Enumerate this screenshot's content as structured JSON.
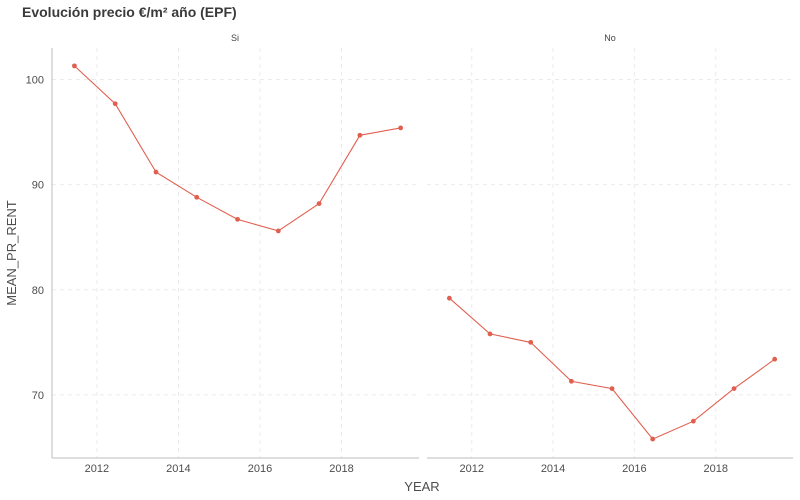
{
  "chart_data": {
    "type": "line",
    "title": "Evolución precio €/m² año (EPF)",
    "xlabel": "YEAR",
    "ylabel": "MEAN_PR_RENT",
    "x_ticks": [
      2012,
      2014,
      2016,
      2018
    ],
    "y_ticks": [
      70,
      80,
      90,
      100
    ],
    "xlim": [
      2010.9,
      2019.9
    ],
    "ylim": [
      64,
      103
    ],
    "grid": true,
    "color": "#e15f4f",
    "panels": [
      {
        "label": "Si",
        "x": [
          2011.45,
          2012.45,
          2013.45,
          2014.45,
          2015.45,
          2016.45,
          2017.45,
          2018.45,
          2019.45
        ],
        "y": [
          101.3,
          97.7,
          91.2,
          88.8,
          86.7,
          85.6,
          88.2,
          94.7,
          95.4
        ]
      },
      {
        "label": "No",
        "x": [
          2011.45,
          2012.45,
          2013.45,
          2014.45,
          2015.45,
          2016.45,
          2017.45,
          2018.45,
          2019.45
        ],
        "y": [
          79.2,
          75.8,
          75.0,
          71.3,
          70.6,
          65.8,
          67.5,
          70.6,
          73.4
        ]
      }
    ]
  }
}
